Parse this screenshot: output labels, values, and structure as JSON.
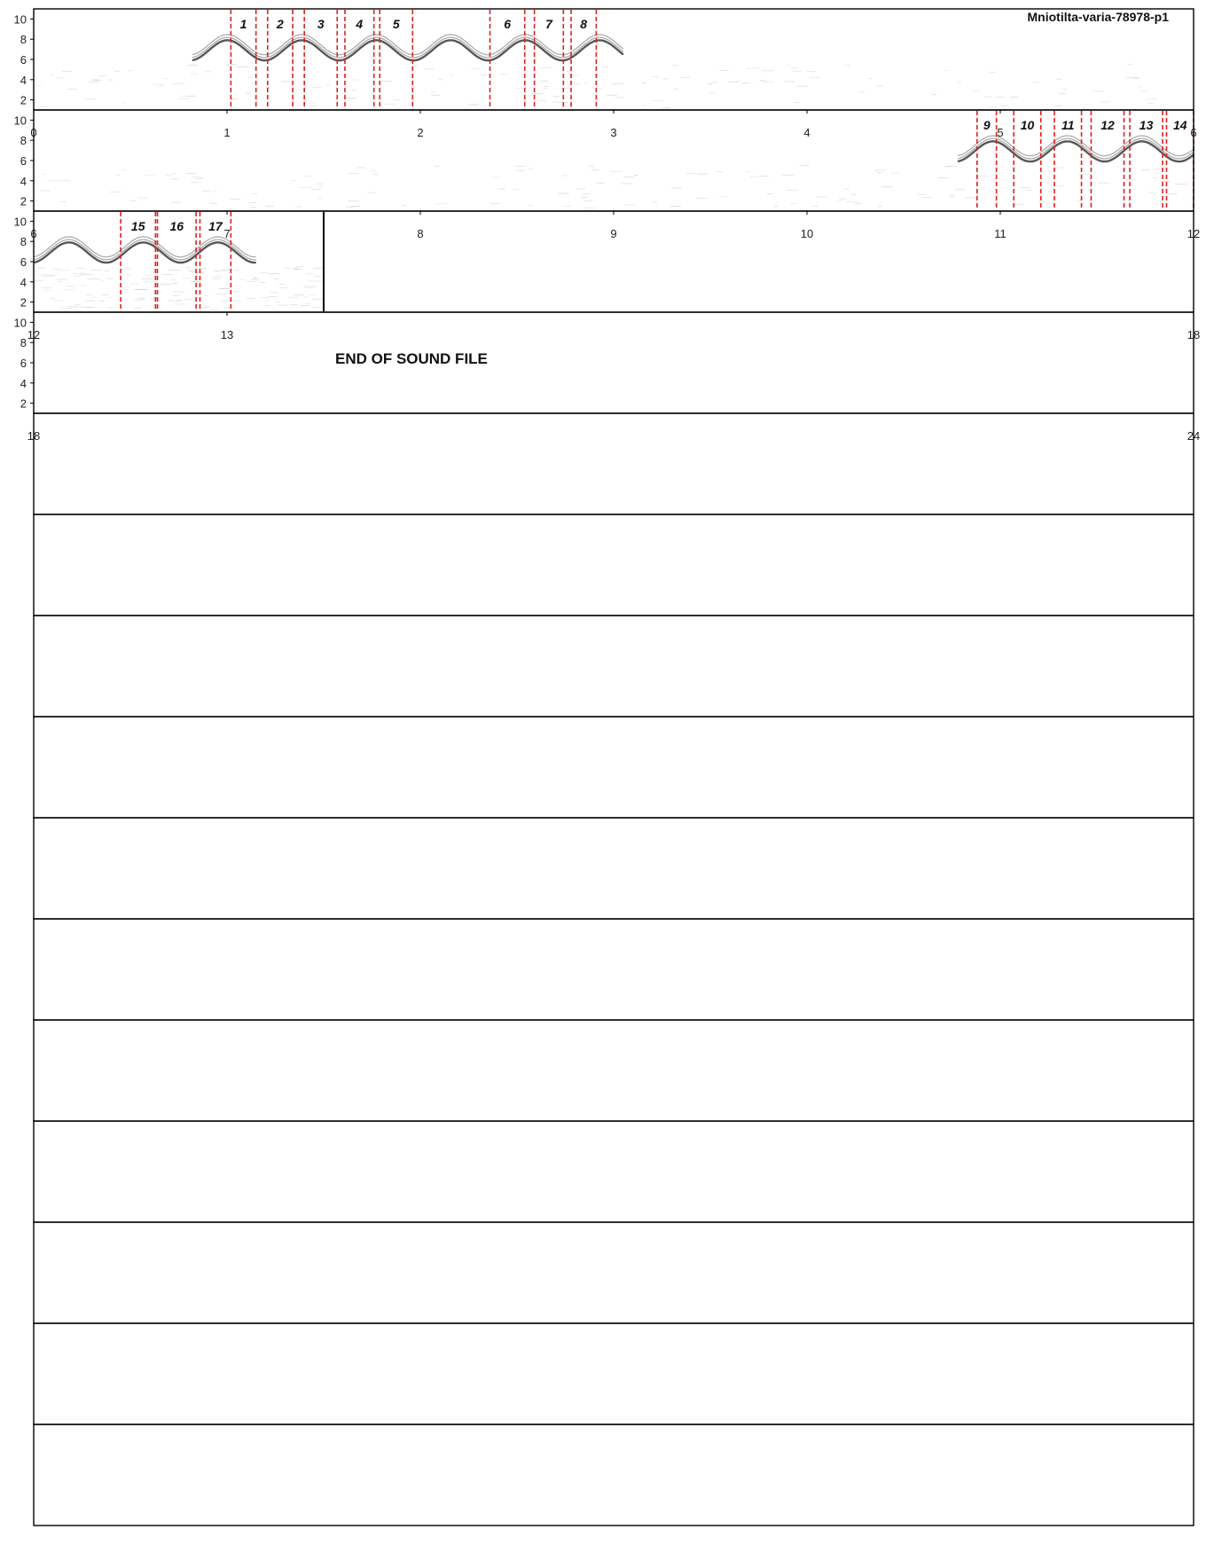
{
  "chart_data": {
    "type": "spectrogram",
    "title": "Mniotilta-varia-78978-p1",
    "end_label": "END OF SOUND FILE",
    "seconds_per_row": 6,
    "total_rows": 15,
    "y_ticks": [
      2,
      4,
      6,
      8,
      10
    ],
    "ylim": [
      1,
      11
    ],
    "recording_end_time": 13.5,
    "rows": [
      {
        "start": 0,
        "end": 6,
        "x_ticks": [
          0,
          1,
          2,
          3,
          4,
          5,
          6
        ]
      },
      {
        "start": 6,
        "end": 12,
        "x_ticks": [
          6,
          7,
          8,
          9,
          10,
          11,
          12
        ]
      },
      {
        "start": 12,
        "end": 18,
        "x_ticks": [
          12,
          13,
          18
        ]
      },
      {
        "start": 18,
        "end": 24,
        "x_ticks": [
          18,
          24
        ]
      }
    ],
    "segments": [
      {
        "label": "1",
        "start": 1.02,
        "end": 1.15
      },
      {
        "label": "2",
        "start": 1.21,
        "end": 1.34
      },
      {
        "label": "3",
        "start": 1.4,
        "end": 1.57
      },
      {
        "label": "4",
        "start": 1.61,
        "end": 1.76
      },
      {
        "label": "5",
        "start": 1.79,
        "end": 1.96
      },
      {
        "label": "6",
        "start": 2.36,
        "end": 2.54
      },
      {
        "label": "7",
        "start": 2.59,
        "end": 2.74
      },
      {
        "label": "8",
        "start": 2.78,
        "end": 2.91
      },
      {
        "label": "9",
        "start": 10.88,
        "end": 10.98
      },
      {
        "label": "10",
        "start": 11.07,
        "end": 11.21
      },
      {
        "label": "11",
        "start": 11.28,
        "end": 11.42
      },
      {
        "label": "12",
        "start": 11.47,
        "end": 11.64
      },
      {
        "label": "13",
        "start": 11.67,
        "end": 11.84
      },
      {
        "label": "14",
        "start": 11.86,
        "end": 12.04
      },
      {
        "label": "15",
        "start": 12.45,
        "end": 12.63
      },
      {
        "label": "16",
        "start": 12.64,
        "end": 12.84
      },
      {
        "label": "17",
        "start": 12.86,
        "end": 13.02
      }
    ],
    "song_traces": [
      {
        "start": 0.82,
        "end": 3.05
      },
      {
        "start": 10.78,
        "end": 12.0
      },
      {
        "start": 12.0,
        "end": 13.15
      }
    ],
    "colors": {
      "segment_line": "#e02020",
      "signal": "#3a3a3a",
      "frame": "#000000"
    }
  }
}
